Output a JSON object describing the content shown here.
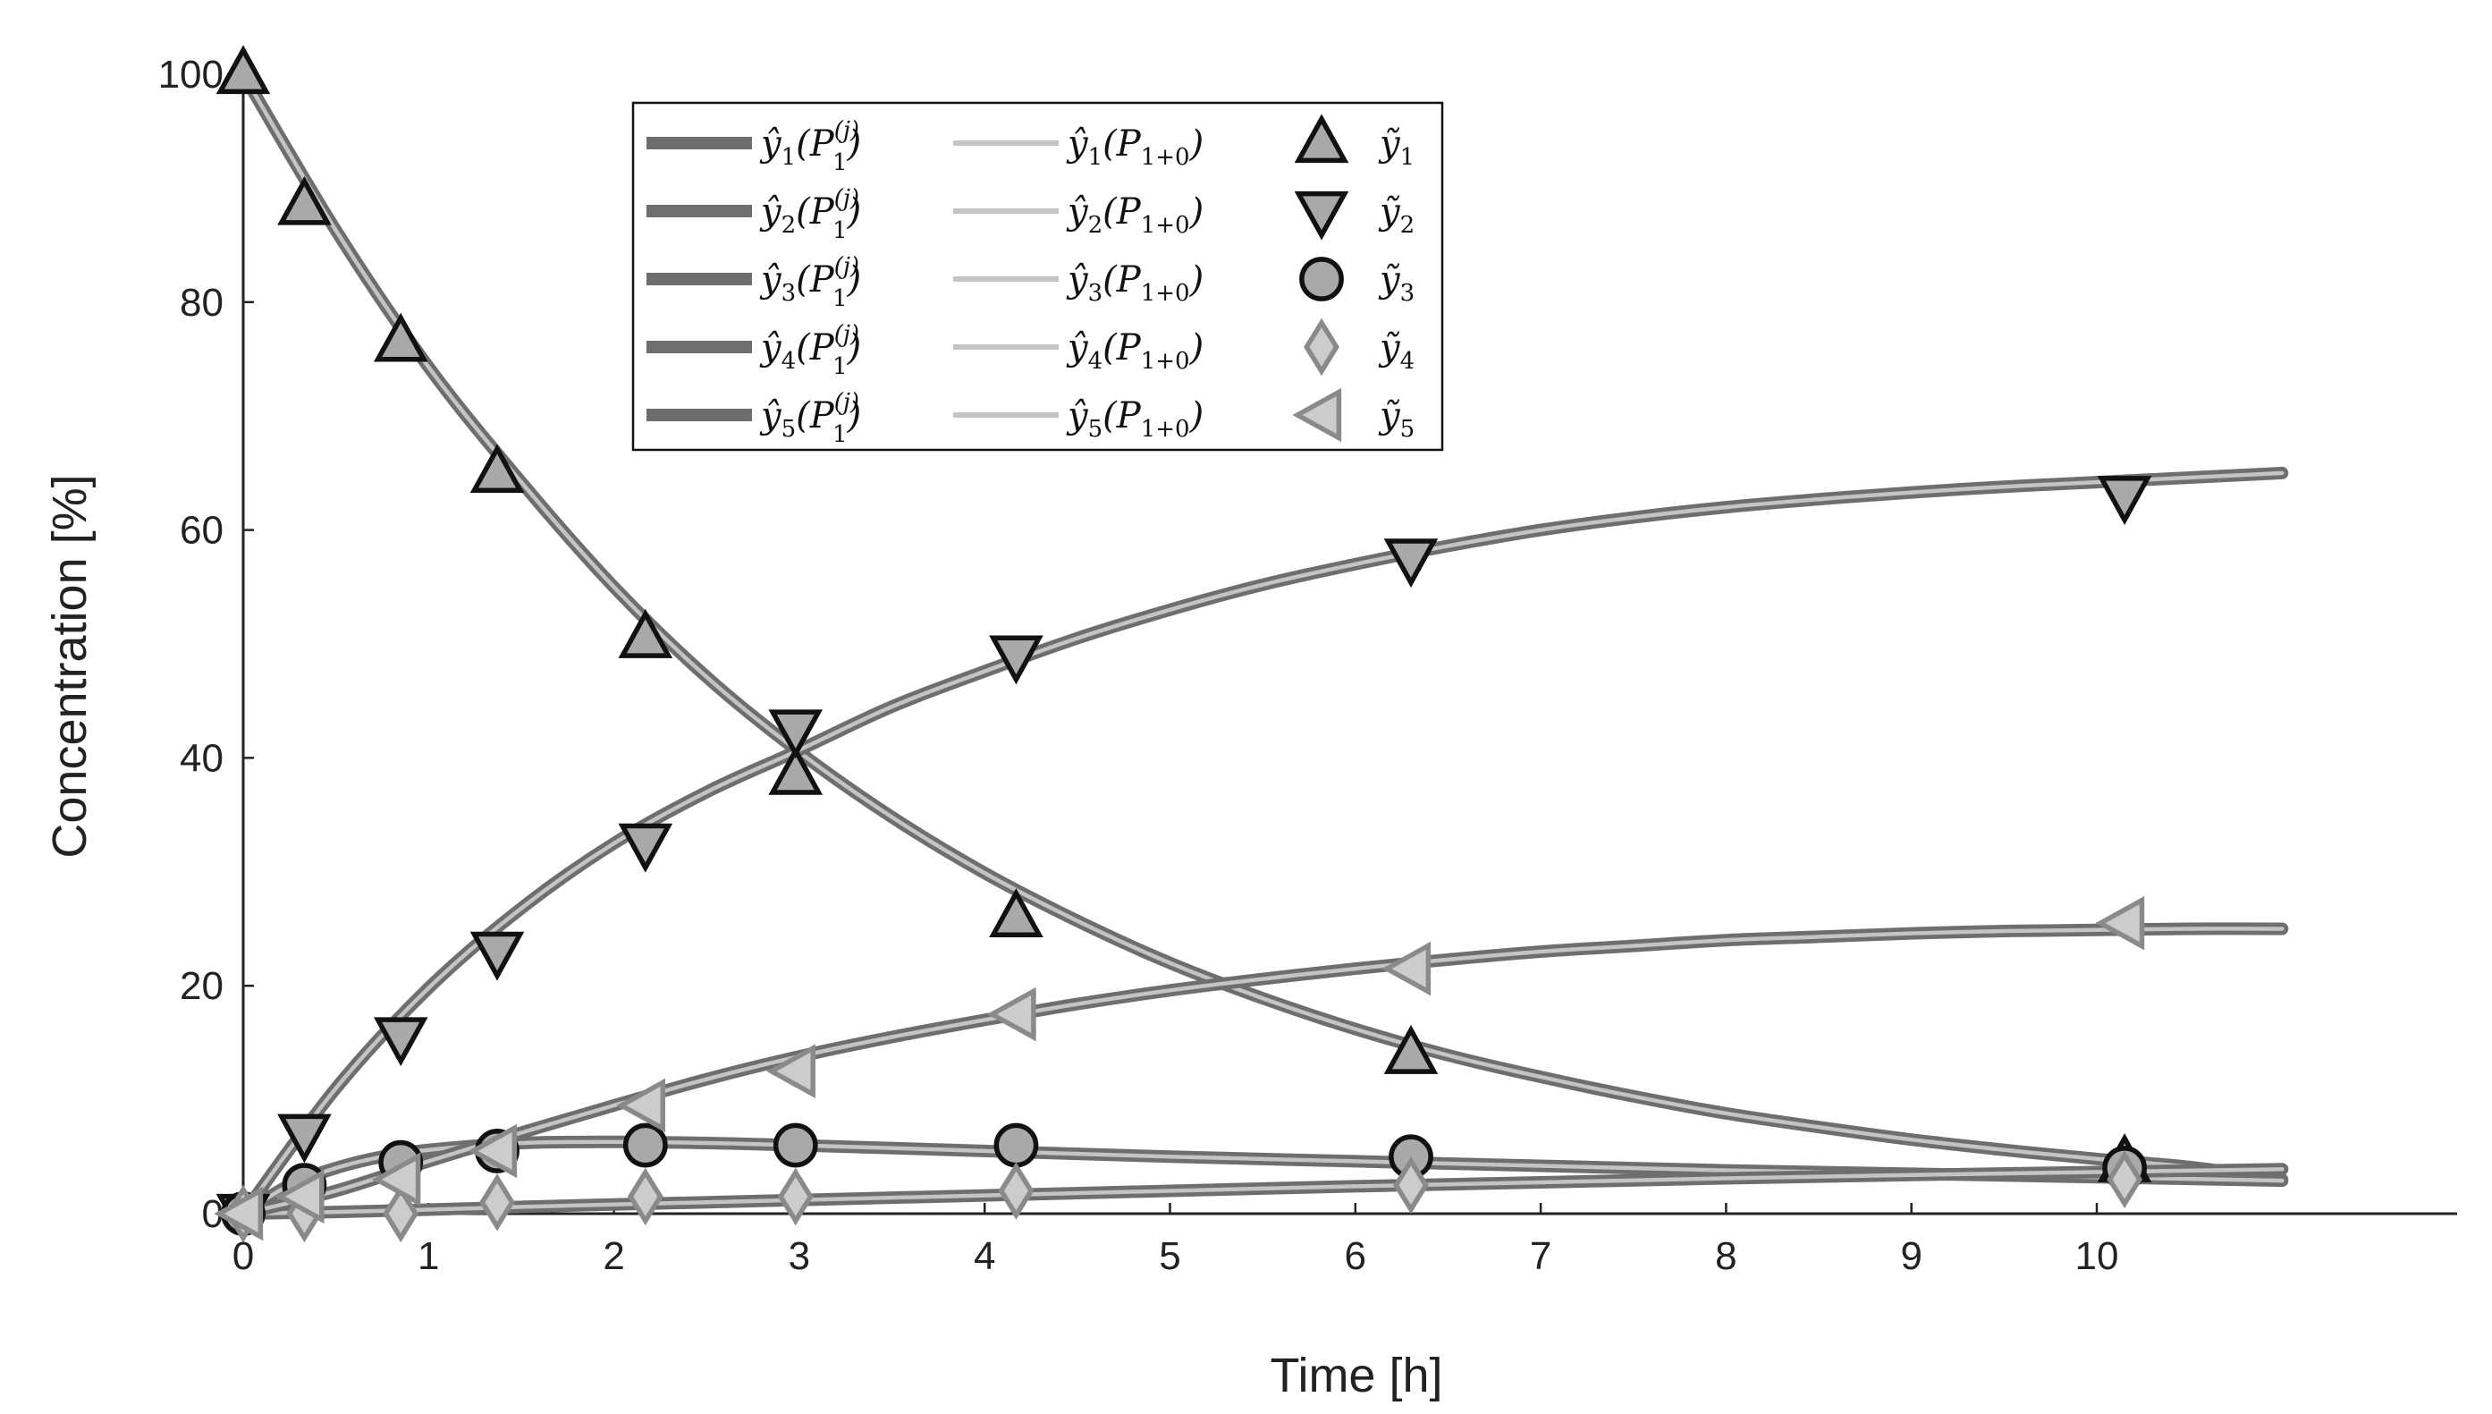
{
  "chart_data": {
    "type": "line",
    "xlabel": "Time [h]",
    "ylabel": "Concentration [%]",
    "xlim": [
      0,
      12
    ],
    "ylim": [
      0,
      100
    ],
    "xticks": [
      "0",
      "1",
      "2",
      "3",
      "4",
      "5",
      "6",
      "7",
      "8",
      "9",
      "10"
    ],
    "yticks": [
      "0",
      "20",
      "40",
      "60",
      "80",
      "100"
    ],
    "grid": false,
    "legend_placement": "top-center",
    "colors": {
      "fit_dark": "#6e6e6e",
      "fit_light": "#c4c4c4",
      "marker_fill": "#a9a9a9",
      "marker_fill_light": "#cccccc",
      "marker_edge_black": "#111111",
      "marker_edge_grey": "#8a8a8a",
      "axis": "#222222"
    },
    "legend": [
      {
        "fit_dark_label": "ŷ1(P1(j))",
        "fit_light_label": "ŷ1(P1+0)",
        "measured_label": "ỹ1",
        "marker": "triangle-up"
      },
      {
        "fit_dark_label": "ŷ2(P1(j))",
        "fit_light_label": "ŷ2(P1+0)",
        "measured_label": "ỹ2",
        "marker": "triangle-down"
      },
      {
        "fit_dark_label": "ŷ3(P1(j))",
        "fit_light_label": "ŷ3(P1+0)",
        "measured_label": "ỹ3",
        "marker": "circle"
      },
      {
        "fit_dark_label": "ŷ4(P1(j))",
        "fit_light_label": "ŷ4(P1+0)",
        "measured_label": "ỹ4",
        "marker": "diamond"
      },
      {
        "fit_dark_label": "ŷ5(P1(j))",
        "fit_light_label": "ŷ5(P1+0)",
        "measured_label": "ỹ5",
        "marker": "triangle-left"
      }
    ],
    "measured_x": [
      0,
      0.33,
      0.85,
      1.37,
      2.17,
      2.98,
      4.17,
      6.3,
      10.15
    ],
    "series": [
      {
        "id": "y1",
        "marker": "triangle-up",
        "edge": "black",
        "values": [
          100,
          88.5,
          76.5,
          65,
          50.5,
          38.5,
          26,
          14,
          4.5
        ],
        "fit_x": [
          0,
          0.5,
          1,
          1.5,
          2,
          2.5,
          3,
          3.5,
          4,
          4.5,
          5,
          5.5,
          6,
          6.5,
          7,
          7.5,
          8,
          8.5,
          9,
          9.5,
          10,
          10.5,
          11
        ],
        "fit_y": [
          100,
          86.3,
          74.3,
          64.2,
          55.0,
          47.1,
          40.5,
          34.8,
          29.9,
          25.7,
          22.0,
          18.9,
          16.2,
          13.9,
          12.0,
          10.3,
          8.8,
          7.6,
          6.5,
          5.6,
          4.8,
          4.1,
          3.0
        ]
      },
      {
        "id": "y2",
        "marker": "triangle-down",
        "edge": "black",
        "values": [
          0,
          7,
          15.5,
          23,
          32.5,
          42.5,
          49,
          57.5,
          63
        ],
        "fit_x": [
          0,
          0.5,
          1,
          1.5,
          2,
          2.5,
          3,
          3.5,
          4,
          4.5,
          5,
          5.5,
          6,
          6.5,
          7,
          7.5,
          8,
          8.5,
          9,
          9.5,
          10,
          10.5,
          11
        ],
        "fit_y": [
          0,
          11.0,
          19.8,
          26.8,
          32.5,
          37.0,
          40.7,
          44.5,
          47.6,
          50.5,
          53.0,
          55.2,
          57.0,
          58.6,
          60.0,
          61.1,
          62.0,
          62.7,
          63.3,
          63.8,
          64.2,
          64.6,
          65.0
        ]
      },
      {
        "id": "y3",
        "marker": "circle",
        "edge": "black",
        "values": [
          0,
          2.5,
          4.5,
          5.5,
          6,
          6,
          6,
          5,
          4
        ],
        "fit_x": [
          0,
          0.25,
          0.5,
          0.75,
          1,
          1.5,
          2,
          2.5,
          3,
          4,
          5,
          6,
          7,
          8,
          9,
          10,
          11
        ],
        "fit_y": [
          0,
          2.5,
          4.0,
          5.0,
          5.6,
          6.2,
          6.3,
          6.2,
          6.0,
          5.5,
          5.0,
          4.6,
          4.2,
          3.8,
          3.5,
          3.2,
          2.9
        ]
      },
      {
        "id": "y4",
        "marker": "diamond",
        "edge": "grey",
        "values": [
          0,
          0,
          0,
          1,
          1.5,
          1.5,
          2,
          2.5,
          3
        ],
        "fit_x": [
          0,
          0.5,
          1,
          1.5,
          2,
          3,
          4,
          5,
          6,
          7,
          8,
          9,
          10,
          11
        ],
        "fit_y": [
          0,
          0.15,
          0.35,
          0.6,
          0.8,
          1.2,
          1.6,
          2.0,
          2.4,
          2.75,
          3.1,
          3.4,
          3.65,
          3.9
        ]
      },
      {
        "id": "y5",
        "marker": "triangle-left",
        "edge": "grey",
        "values": [
          0,
          1.5,
          3,
          5.5,
          9.5,
          12.5,
          17.5,
          21.5,
          25.5
        ],
        "fit_x": [
          0,
          0.5,
          1,
          1.5,
          2,
          2.5,
          3,
          3.5,
          4,
          4.5,
          5,
          5.5,
          6,
          6.5,
          7,
          7.5,
          8,
          8.5,
          9,
          9.5,
          10,
          10.5,
          11
        ],
        "fit_y": [
          0,
          2.0,
          4.6,
          7.1,
          9.5,
          11.8,
          13.8,
          15.5,
          17.0,
          18.4,
          19.6,
          20.6,
          21.5,
          22.3,
          23.0,
          23.5,
          24.0,
          24.3,
          24.6,
          24.8,
          24.9,
          25.0,
          25.0
        ]
      }
    ]
  }
}
